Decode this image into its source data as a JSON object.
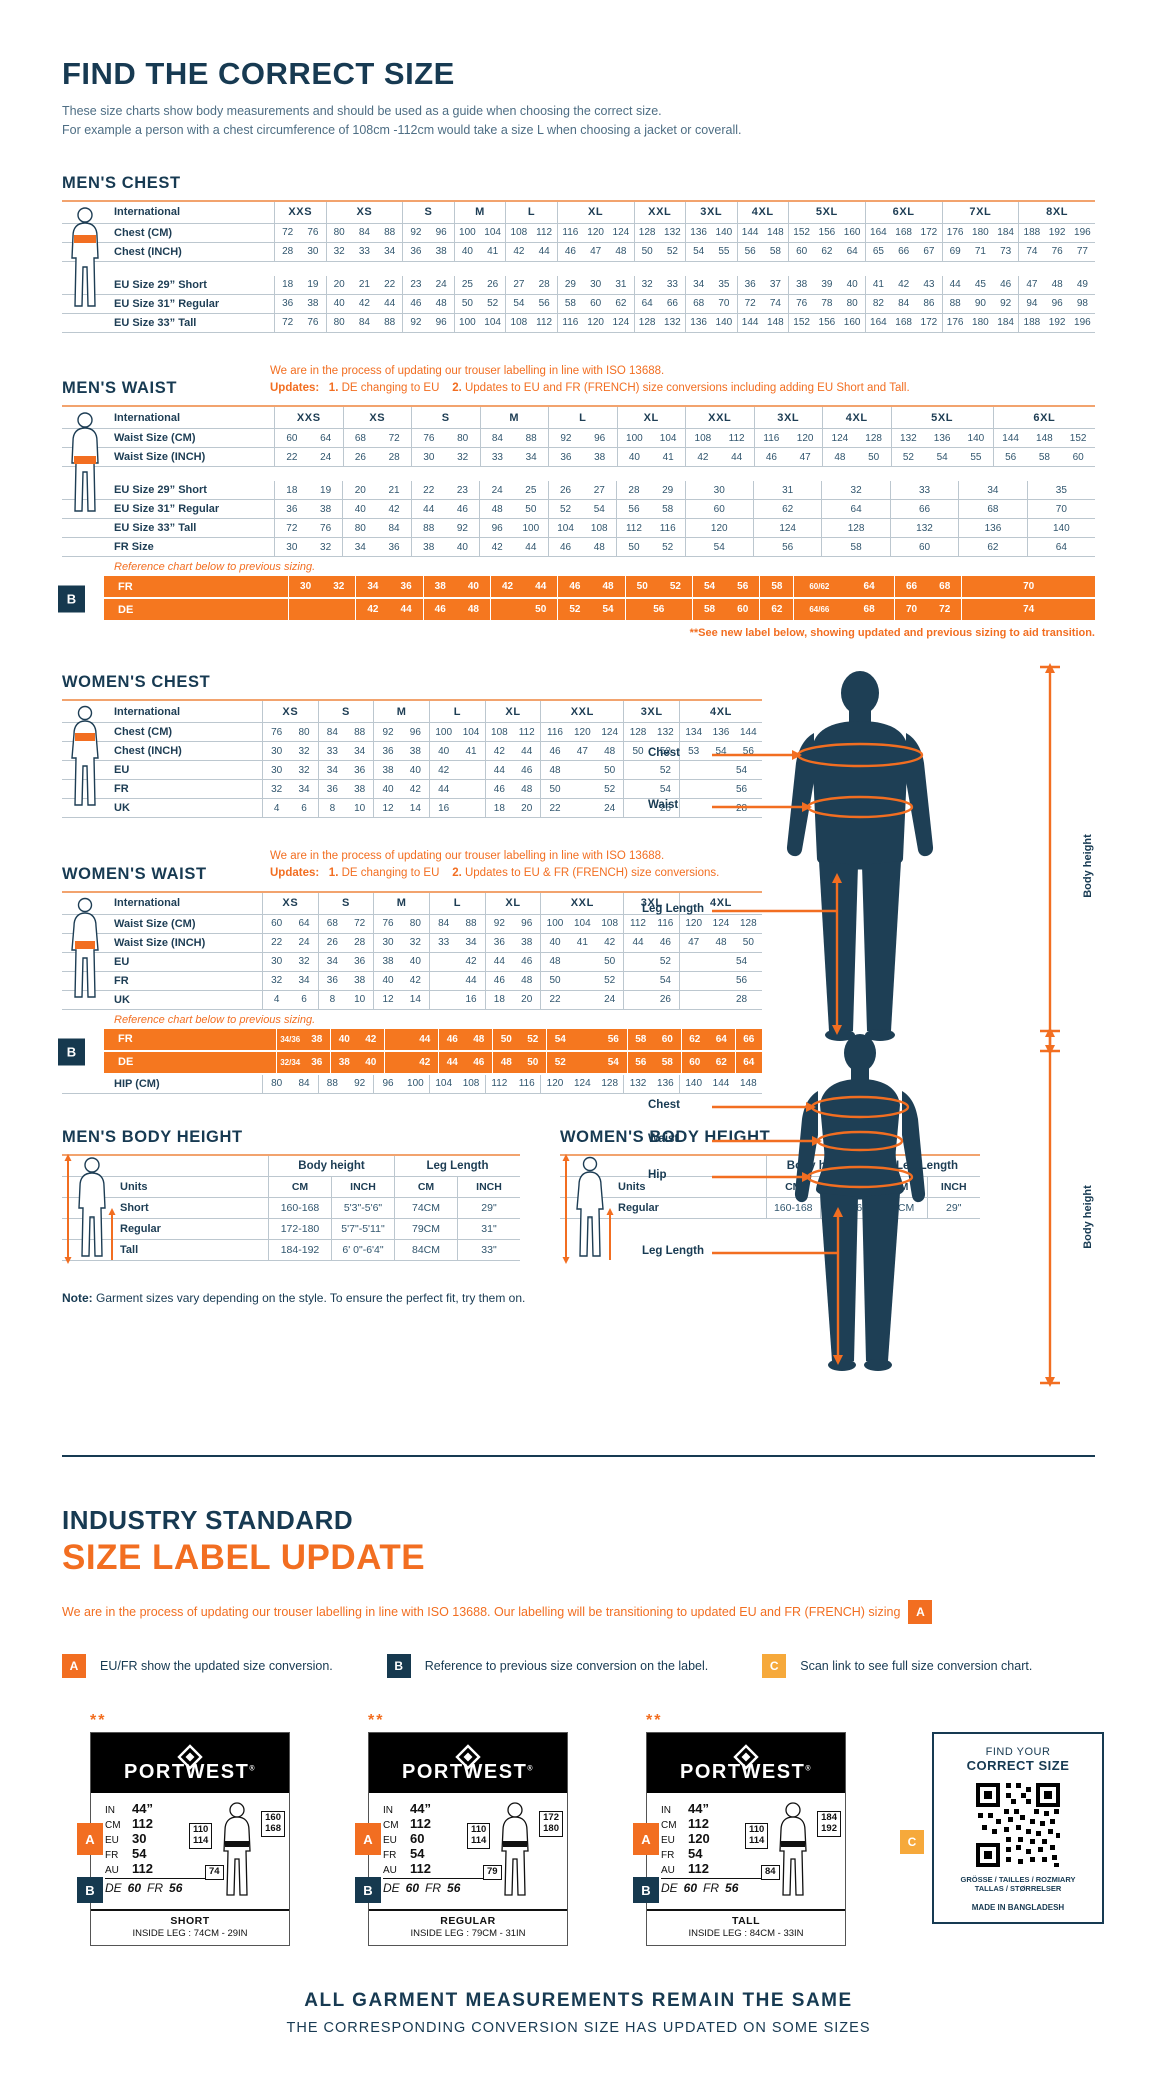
{
  "header": {
    "title": "FIND THE CORRECT SIZE",
    "intro1": "These size charts show body measurements and should be used as a guide when choosing the correct size.",
    "intro2": "For example a person with a chest circumference of 108cm -112cm would take a size L when choosing a jacket or coverall."
  },
  "colors": {
    "navy": "#173a52",
    "orange": "#f26e21",
    "amber": "#f6a93b"
  },
  "tables": {
    "mens_chest": {
      "title": "MEN'S CHEST",
      "label_col": "International",
      "columns": [
        "XXS",
        "XS",
        "S",
        "M",
        "L",
        "XL",
        "XXL",
        "3XL",
        "4XL",
        "5XL",
        "6XL",
        "7XL",
        "8XL"
      ],
      "spans": [
        2,
        3,
        2,
        2,
        2,
        3,
        2,
        2,
        2,
        3,
        3,
        3,
        3
      ],
      "rows": [
        {
          "label": "Chest (CM)",
          "cells": [
            "72 76",
            "80 84 88",
            "92 96",
            "100 104",
            "108 112",
            "116 120 124",
            "128 132",
            "136 140",
            "144 148",
            "152 156 160",
            "164 168 172",
            "176 180 184",
            "188 192 196"
          ]
        },
        {
          "label": "Chest (INCH)",
          "cells": [
            "28 30",
            "32 33 34",
            "36 38",
            "40 41",
            "42 44",
            "46 47 48",
            "50 52",
            "54 55",
            "56 58",
            "60 62 64",
            "65 66 67",
            "69 71 73",
            "74 76 77"
          ]
        }
      ],
      "rows2": [
        {
          "label": "EU Size 29” Short",
          "cells": [
            "18 19",
            "20 21 22",
            "23 24",
            "25 26",
            "27 28",
            "29 30 31",
            "32 33",
            "34 35",
            "36 37",
            "38 39 40",
            "41 42 43",
            "44 45 46",
            "47 48 49"
          ]
        },
        {
          "label": "EU Size 31” Regular",
          "cells": [
            "36 38",
            "40 42 44",
            "46 48",
            "50 52",
            "54 56",
            "58 60 62",
            "64 66",
            "68 70",
            "72 74",
            "76 78 80",
            "82 84 86",
            "88 90 92",
            "94 96 98"
          ]
        },
        {
          "label": "EU Size 33” Tall",
          "cells": [
            "72 76",
            "80 84 88",
            "92 96",
            "100 104",
            "108 112",
            "116 120 124",
            "128 132",
            "136 140",
            "144 148",
            "152 156 160",
            "164 168 172",
            "176 180 184",
            "188 192 196"
          ]
        }
      ]
    },
    "mens_waist": {
      "title": "MEN'S WAIST",
      "note": {
        "line1": "We are in the process of updating our trouser labelling in line with ISO 13688.",
        "label": "Updates:",
        "n1": "1.",
        "t1": "DE changing to EU",
        "n2": "2.",
        "t2": "Updates to EU and FR (FRENCH) size conversions including adding EU Short and Tall."
      },
      "label_col": "International",
      "columns": [
        "XXS",
        "XS",
        "S",
        "M",
        "L",
        "XL",
        "XXL",
        "3XL",
        "4XL",
        "5XL",
        "6XL"
      ],
      "spans": [
        2,
        2,
        2,
        2,
        2,
        2,
        2,
        2,
        2,
        3,
        3
      ],
      "rows": [
        {
          "label": "Waist Size (CM)",
          "cells": [
            "60 64",
            "68 72",
            "76 80",
            "84 88",
            "92 96",
            "100 104",
            "108 112",
            "116 120",
            "124 128",
            "132 136 140",
            "144 148 152"
          ]
        },
        {
          "label": "Waist Size (INCH)",
          "cells": [
            "22 24",
            "26 28",
            "30 32",
            "33 34",
            "36 38",
            "40 41",
            "42 44",
            "46 47",
            "48 50",
            "52 54 55",
            "56 58 60"
          ]
        }
      ],
      "sub_spans": [
        2,
        2,
        2,
        2,
        2,
        2,
        2,
        2,
        2,
        2,
        2,
        2
      ],
      "rows2": [
        {
          "label": "EU Size 29” Short",
          "cells": [
            "18 19",
            "20 21",
            "22 23",
            "24 25",
            "26 27",
            "28 29",
            "30",
            "31",
            "32",
            "33",
            "34",
            "35"
          ]
        },
        {
          "label": "EU Size 31” Regular",
          "cells": [
            "36 38",
            "40 42",
            "44 46",
            "48 50",
            "52 54",
            "56 58",
            "60",
            "62",
            "64",
            "66",
            "68",
            "70"
          ]
        },
        {
          "label": "EU Size 33” Tall",
          "cells": [
            "72 76",
            "80 84",
            "88 92",
            "96 100",
            "104 108",
            "112 116",
            "120",
            "124",
            "128",
            "132",
            "136",
            "140"
          ]
        },
        {
          "label": "FR Size",
          "cells": [
            "30 32",
            "34 36",
            "38 40",
            "42 44",
            "46 48",
            "50 52",
            "54",
            "56",
            "58",
            "60",
            "62",
            "64"
          ]
        }
      ],
      "ref_note": "Reference chart below to previous sizing.",
      "orange": {
        "badge": "B",
        "spans": [
          2,
          2,
          2,
          2,
          2,
          2,
          2,
          1,
          3,
          2,
          4
        ],
        "rows": [
          {
            "label": "FR",
            "cells": [
              "30 32",
              "34 36",
              "38 40",
              "42 44",
              "46 48",
              "50 52",
              "54 56",
              "58",
              "60/62 64",
              "66 68",
              "70"
            ]
          },
          {
            "label": "DE",
            "cells": [
              "_",
              "42 44",
              "46 48",
              "_ 50",
              "52 54",
              "56",
              "58 60",
              "62",
              "64/66 68",
              "70 72",
              "74"
            ]
          }
        ]
      },
      "post_note": "**See new label below, showing updated and previous sizing to aid transition."
    },
    "womens_chest": {
      "title": "WOMEN'S CHEST",
      "label_col": "International",
      "columns": [
        "XS",
        "S",
        "M",
        "L",
        "XL",
        "XXL",
        "3XL",
        "4XL"
      ],
      "spans": [
        2,
        2,
        2,
        2,
        2,
        3,
        2,
        3
      ],
      "rows": [
        {
          "label": "Chest (CM)",
          "cells": [
            "76 80",
            "84 88",
            "92 96",
            "100 104",
            "108 112",
            "116 120 124",
            "128 132",
            "134 136 144"
          ]
        },
        {
          "label": "Chest (INCH)",
          "cells": [
            "30 32",
            "33 34",
            "36 38",
            "40 41",
            "42 44",
            "46 47 48",
            "50 52",
            "53 54 56"
          ]
        },
        {
          "label": "EU",
          "cells": [
            "30 32",
            "34 36",
            "38 40",
            "42 _",
            "44 46",
            "48 _ 50",
            "_ 52",
            "_ 54"
          ]
        },
        {
          "label": "FR",
          "cells": [
            "32 34",
            "36 38",
            "40 42",
            "44 _",
            "46 48",
            "50 _ 52",
            "_ 54",
            "_ 56"
          ]
        },
        {
          "label": "UK",
          "cells": [
            "4 6",
            "8 10",
            "12 14",
            "16 _",
            "18 20",
            "22 _ 24",
            "_ 26",
            "_ 28"
          ]
        }
      ]
    },
    "womens_waist": {
      "title": "WOMEN'S WAIST",
      "note": {
        "line1": "We are in the process of updating our trouser labelling in line with ISO 13688.",
        "label": "Updates:",
        "n1": "1.",
        "t1": "DE changing to EU",
        "n2": "2.",
        "t2": "Updates to EU & FR (FRENCH) size conversions."
      },
      "label_col": "International",
      "columns": [
        "XS",
        "S",
        "M",
        "L",
        "XL",
        "XXL",
        "3XL",
        "4XL"
      ],
      "spans": [
        2,
        2,
        2,
        2,
        2,
        3,
        2,
        3
      ],
      "rows": [
        {
          "label": "Waist Size (CM)",
          "cells": [
            "60 64",
            "68 72",
            "76 80",
            "84 88",
            "92 96",
            "100 104 108",
            "112 116",
            "120 124 128"
          ]
        },
        {
          "label": "Waist Size (INCH)",
          "cells": [
            "22 24",
            "26 28",
            "30 32",
            "33 34",
            "36 38",
            "40 41 42",
            "44 46",
            "47 48 50"
          ]
        },
        {
          "label": "EU",
          "cells": [
            "30 32",
            "34 36",
            "38 40",
            "_ 42",
            "44 46",
            "48 _ 50",
            "_ 52",
            "_ 54"
          ]
        },
        {
          "label": "FR",
          "cells": [
            "32 34",
            "36 38",
            "40 42",
            "_ 44",
            "46 48",
            "50 _ 52",
            "_ 54",
            "_ 56"
          ]
        },
        {
          "label": "UK",
          "cells": [
            "4 6",
            "8 10",
            "12 14",
            "_ 16",
            "18 20",
            "22 _ 24",
            "_ 26",
            "_ 28"
          ]
        }
      ],
      "ref_note": "Reference chart below to previous sizing.",
      "orange": {
        "badge": "B",
        "spans": [
          2,
          2,
          2,
          2,
          2,
          3,
          2,
          2,
          1
        ],
        "rows": [
          {
            "label": "FR",
            "cells": [
              "34/36 38",
              "40 42",
              "_ 44",
              "46 48",
              "50 52",
              "54 _ 56",
              "58 60",
              "62 64",
              "66"
            ]
          },
          {
            "label": "DE",
            "cells": [
              "32/34 36",
              "38 40",
              "_ 42",
              "44 46",
              "48 50",
              "52 _ 54",
              "56 58",
              "60 62",
              "64"
            ]
          }
        ]
      },
      "post_rows": [
        {
          "label": "HIP (CM)",
          "cells": [
            "80 84",
            "88 92",
            "96 100",
            "104 108",
            "112 116",
            "120 124 128",
            "132 136",
            "140 144 148"
          ]
        }
      ]
    }
  },
  "body_height": {
    "mens": {
      "title": "MEN'S BODY HEIGHT",
      "group1": "Body height",
      "group2": "Leg Length",
      "units_label": "Units",
      "units": [
        "CM",
        "INCH",
        "CM",
        "INCH"
      ],
      "rows": [
        {
          "label": "Short",
          "cells": [
            "160-168",
            "5'3\"-5'6\"",
            "74CM",
            "29\""
          ]
        },
        {
          "label": "Regular",
          "cells": [
            "172-180",
            "5'7\"-5'11\"",
            "79CM",
            "31\""
          ]
        },
        {
          "label": "Tall",
          "cells": [
            "184-192",
            "6' 0\"-6'4\"",
            "84CM",
            "33\""
          ]
        }
      ]
    },
    "womens": {
      "title": "WOMEN'S BODY HEIGHT",
      "group1": "Body height",
      "group2": "Leg Length",
      "units_label": "Units",
      "units": [
        "CM",
        "INCH",
        "CM",
        "INCH"
      ],
      "rows": [
        {
          "label": "Regular",
          "cells": [
            "160-168",
            "5'3\"-5'6\"",
            "74CM",
            "29\""
          ]
        }
      ]
    }
  },
  "note": {
    "prefix": "Note:",
    "text": " Garment sizes vary depending on the style. To ensure the perfect fit, try them on."
  },
  "diagrams": {
    "male": {
      "chest": "Chest",
      "waist": "Waist",
      "leg": "Leg Length",
      "body": "Body height"
    },
    "female": {
      "chest": "Chest",
      "waist": "Waist",
      "hip": "Hip",
      "leg": "Leg Length",
      "body": "Body height"
    }
  },
  "industry": {
    "line1": "INDUSTRY STANDARD",
    "line2": "SIZE LABEL UPDATE",
    "para": "We are in the process of updating our trouser labelling in line with ISO 13688. Our labelling will be transitioning to updated EU and FR (FRENCH) sizing",
    "para_badge": "A"
  },
  "legend": [
    {
      "letter": "A",
      "text": "EU/FR show the updated size conversion."
    },
    {
      "letter": "B",
      "text": "Reference to previous size conversion on the label."
    },
    {
      "letter": "C",
      "text": "Scan link to see full size conversion chart."
    }
  ],
  "labels": {
    "stars": "**",
    "brand": "PORTWEST",
    "reg": "®",
    "cards": [
      {
        "rows": [
          [
            "IN",
            "44”"
          ],
          [
            "CM",
            "112"
          ],
          [
            "EU",
            "30"
          ],
          [
            "FR",
            "54"
          ],
          [
            "AU",
            "112"
          ]
        ],
        "b_de": "DE",
        "b_de_v": "60",
        "b_fr": "FR",
        "b_fr_v": "56",
        "waist1": "110",
        "waist2": "114",
        "hgt1": "160",
        "hgt2": "168",
        "leg": "74",
        "name": "SHORT",
        "inside": "INSIDE LEG : 74CM - 29IN"
      },
      {
        "rows": [
          [
            "IN",
            "44”"
          ],
          [
            "CM",
            "112"
          ],
          [
            "EU",
            "60"
          ],
          [
            "FR",
            "54"
          ],
          [
            "AU",
            "112"
          ]
        ],
        "b_de": "DE",
        "b_de_v": "60",
        "b_fr": "FR",
        "b_fr_v": "56",
        "waist1": "110",
        "waist2": "114",
        "hgt1": "172",
        "hgt2": "180",
        "leg": "79",
        "name": "REGULAR",
        "inside": "INSIDE LEG : 79CM - 31IN"
      },
      {
        "rows": [
          [
            "IN",
            "44”"
          ],
          [
            "CM",
            "112"
          ],
          [
            "EU",
            "120"
          ],
          [
            "FR",
            "54"
          ],
          [
            "AU",
            "112"
          ]
        ],
        "b_de": "DE",
        "b_de_v": "60",
        "b_fr": "FR",
        "b_fr_v": "56",
        "waist1": "110",
        "waist2": "114",
        "hgt1": "184",
        "hgt2": "192",
        "leg": "84",
        "name": "TALL",
        "inside": "INSIDE LEG : 84CM - 33IN"
      }
    ],
    "badge_a": "A",
    "badge_b": "B",
    "qr": {
      "badge": "C",
      "top1": "FIND YOUR",
      "top2": "CORRECT SIZE",
      "lang1": "GRÖSSE / TAILLES / ROZMIARY",
      "lang2": "TALLAS / STØRRELSER",
      "made": "MADE IN BANGLADESH"
    }
  },
  "footer": {
    "line1": "ALL GARMENT MEASUREMENTS REMAIN THE SAME",
    "line2": "THE CORRESPONDING CONVERSION SIZE HAS UPDATED ON SOME SIZES"
  }
}
